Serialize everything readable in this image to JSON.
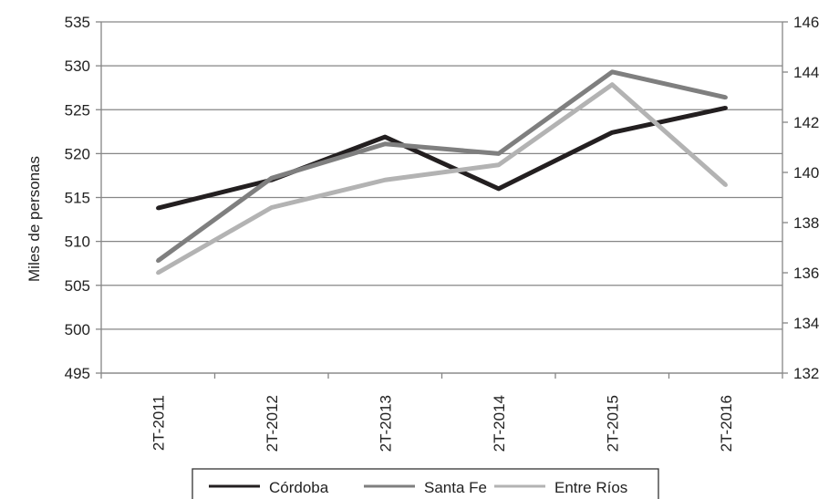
{
  "chart_data": {
    "type": "line",
    "categories": [
      "2T-2011",
      "2T-2012",
      "2T-2013",
      "2T-2014",
      "2T-2015",
      "2T-2016"
    ],
    "ylabel": "Miles de personas",
    "ylim": [
      495,
      535
    ],
    "y_ticks": [
      "495",
      "500",
      "505",
      "510",
      "515",
      "520",
      "525",
      "530",
      "535"
    ],
    "y2lim": [
      132,
      146
    ],
    "y2_ticks": [
      "132",
      "134",
      "136",
      "138",
      "140",
      "142",
      "144",
      "146"
    ],
    "grid": true,
    "legend_position": "bottom",
    "series": [
      {
        "name": "Córdoba",
        "axis": "left",
        "color": "#231f20",
        "values": [
          513.8,
          517.0,
          521.9,
          516.0,
          522.4,
          525.2
        ]
      },
      {
        "name": "Santa Fe",
        "axis": "left",
        "color": "#7f7f7f",
        "values": [
          507.8,
          517.2,
          521.1,
          520.0,
          529.3,
          526.4
        ]
      },
      {
        "name": "Entre Ríos",
        "axis": "right",
        "color": "#b3b3b3",
        "values": [
          136.0,
          138.6,
          139.7,
          140.3,
          143.5,
          139.5
        ]
      }
    ]
  }
}
